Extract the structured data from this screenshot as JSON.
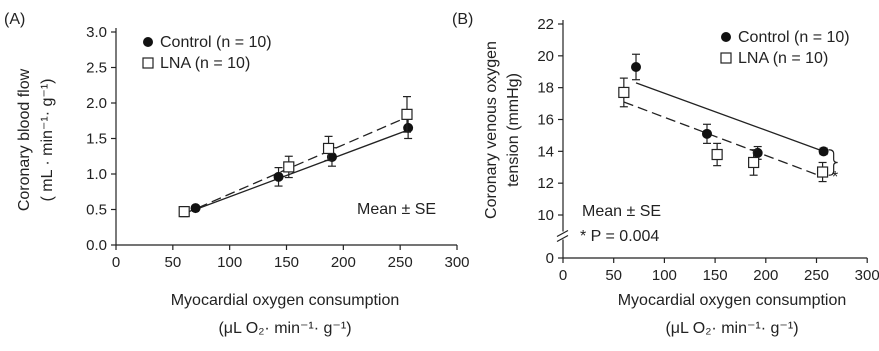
{
  "chart_data": [
    {
      "type": "scatter",
      "panel_label": "(A)",
      "ylabel_line1": "Coronary blood flow",
      "ylabel_line2": "( mL · min⁻¹· g⁻¹)",
      "xlabel_line1": "Myocardial oxygen consumption",
      "xlabel_line2": "(μL O₂· min⁻¹· g⁻¹)",
      "xlim": [
        0,
        300
      ],
      "ylim": [
        0,
        3.0
      ],
      "xticks": [
        "0",
        "50",
        "100",
        "150",
        "200",
        "250",
        "300"
      ],
      "yticks": [
        "0.0",
        "0.5",
        "1.0",
        "1.5",
        "2.0",
        "2.5",
        "3.0"
      ],
      "legend_placement": "top-left",
      "annotation": "Mean ± SE",
      "series": [
        {
          "name": "Control (n = 10)",
          "marker": "filled-circle",
          "line": "solid",
          "x": [
            70,
            143,
            190,
            257
          ],
          "y": [
            0.52,
            0.96,
            1.24,
            1.65
          ],
          "err": [
            0.03,
            0.13,
            0.13,
            0.15
          ],
          "fit": [
            [
              70,
              0.5
            ],
            [
              257,
              1.62
            ]
          ]
        },
        {
          "name": "LNA (n = 10)",
          "marker": "open-square",
          "line": "dashed",
          "x": [
            60,
            152,
            187,
            256
          ],
          "y": [
            0.47,
            1.1,
            1.36,
            1.84
          ],
          "err": [
            0.07,
            0.15,
            0.17,
            0.25
          ],
          "fit": [
            [
              60,
              0.44
            ],
            [
              256,
              1.8
            ]
          ]
        }
      ]
    },
    {
      "type": "scatter",
      "panel_label": "(B)",
      "ylabel_line1": "Coronary venous oxygen",
      "ylabel_line2": "tension (mmHg)",
      "xlabel_line1": "Myocardial oxygen consumption",
      "xlabel_line2": "(μL O₂· min⁻¹· g⁻¹)",
      "xlim": [
        0,
        300
      ],
      "ylim": [
        10,
        22
      ],
      "axis_break": true,
      "xticks": [
        "0",
        "50",
        "100",
        "150",
        "200",
        "250",
        "300"
      ],
      "yticks": [
        "0",
        "10",
        "12",
        "14",
        "16",
        "18",
        "20",
        "22"
      ],
      "legend_placement": "top-right",
      "annotation": "Mean ± SE",
      "stat_annotation": "* P = 0.004",
      "sig_marker": "*",
      "series": [
        {
          "name": "Control (n = 10)",
          "marker": "filled-circle",
          "line": "solid",
          "x": [
            72,
            142,
            192,
            257
          ],
          "y": [
            19.3,
            15.1,
            13.9,
            14.0
          ],
          "err": [
            0.8,
            0.6,
            0.4,
            0.2
          ],
          "fit": [
            [
              72,
              18.3
            ],
            [
              257,
              14.0
            ]
          ]
        },
        {
          "name": "LNA (n = 10)",
          "marker": "open-square",
          "line": "dashed",
          "x": [
            60,
            152,
            188,
            256
          ],
          "y": [
            17.7,
            13.8,
            13.3,
            12.7
          ],
          "err": [
            0.9,
            0.7,
            0.8,
            0.6
          ],
          "fit": [
            [
              60,
              17.1
            ],
            [
              256,
              12.4
            ]
          ]
        }
      ]
    }
  ]
}
